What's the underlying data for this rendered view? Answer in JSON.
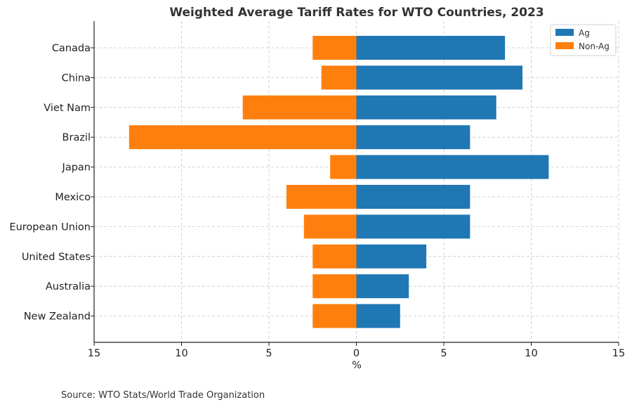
{
  "chart_data": {
    "type": "bar",
    "orientation": "horizontal",
    "title": "Weighted Average Tariff Rates for WTO Countries, 2023",
    "xlabel": "%",
    "ylabel": "",
    "xlim": [
      -15,
      15
    ],
    "x_ticks": [
      -15,
      -10,
      -5,
      0,
      5,
      10,
      15
    ],
    "x_tick_labels": [
      "15",
      "10",
      "5",
      "0",
      "5",
      "10",
      "15"
    ],
    "grid": true,
    "legend_position": "top-right",
    "categories": [
      "Canada",
      "China",
      "Viet Nam",
      "Brazil",
      "Japan",
      "Mexico",
      "European Union",
      "United States",
      "Australia",
      "New Zealand"
    ],
    "series": [
      {
        "name": "Ag",
        "color": "#1f77b4",
        "values": [
          8.5,
          9.5,
          8.0,
          6.5,
          11.0,
          6.5,
          6.5,
          4.0,
          3.0,
          2.5
        ]
      },
      {
        "name": "Non-Ag",
        "color": "#ff7f0e",
        "values": [
          -2.5,
          -2.0,
          -6.5,
          -13.0,
          -1.5,
          -4.0,
          -3.0,
          -2.5,
          -2.5,
          -2.5
        ]
      }
    ]
  },
  "footer": {
    "source": "Source: WTO Stats/World Trade Organization"
  }
}
